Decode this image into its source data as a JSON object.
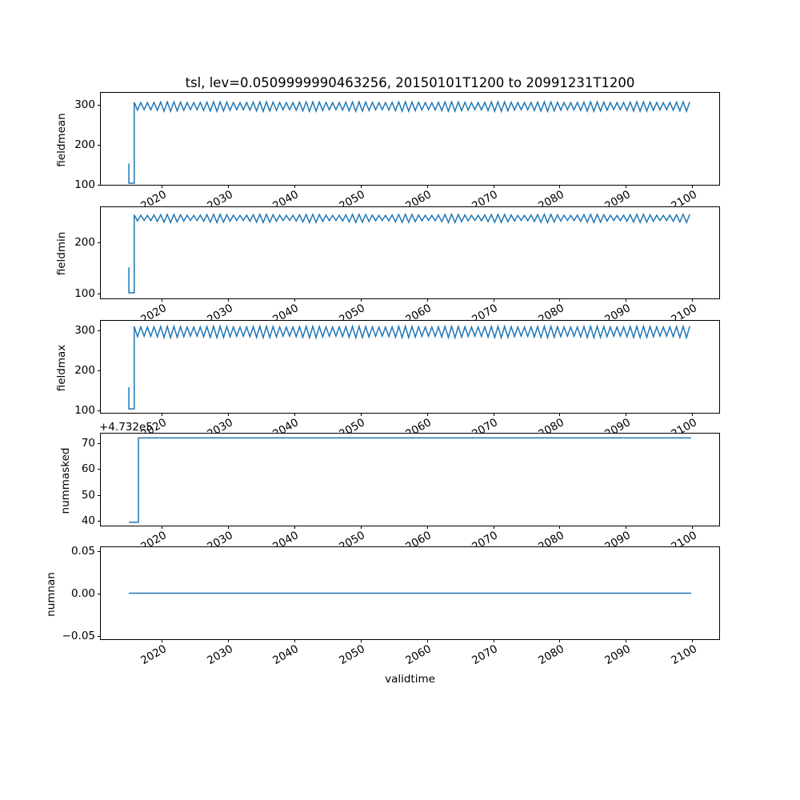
{
  "figure": {
    "title": "tsl, lev=0.0509999990463256, 20150101T1200 to 20991231T1200",
    "xlabel": "validtime",
    "line_color": "#1f77b4",
    "text_color": "#000000",
    "spine_color": "#000000",
    "background": "#ffffff"
  },
  "x_axis": {
    "label": "validtime",
    "lim": [
      2010.75,
      2104.25
    ],
    "ticks": [
      {
        "v": 2020,
        "label": "2020"
      },
      {
        "v": 2030,
        "label": "2030"
      },
      {
        "v": 2040,
        "label": "2040"
      },
      {
        "v": 2050,
        "label": "2050"
      },
      {
        "v": 2060,
        "label": "2060"
      },
      {
        "v": 2070,
        "label": "2070"
      },
      {
        "v": 2080,
        "label": "2080"
      },
      {
        "v": 2090,
        "label": "2090"
      },
      {
        "v": 2100,
        "label": "2100"
      }
    ]
  },
  "chart_data": [
    {
      "type": "line",
      "name": "fieldmean",
      "ylabel": "fieldmean",
      "ylim": [
        96,
        330
      ],
      "yticks": [
        {
          "v": 100,
          "label": "100"
        },
        {
          "v": 200,
          "label": "200"
        },
        {
          "v": 300,
          "label": "300"
        }
      ],
      "offset_text": "",
      "series": {
        "path": [
          [
            2015.0,
            150
          ],
          [
            2015.0,
            100
          ],
          [
            2015.8,
            100
          ],
          [
            2015.8,
            300
          ]
        ],
        "seasonal": {
          "x0": 2015.8,
          "x1": 2100,
          "hi": 306,
          "lo": 285,
          "period": 1
        }
      }
    },
    {
      "type": "line",
      "name": "fieldmin",
      "ylabel": "fieldmin",
      "ylim": [
        89,
        268
      ],
      "yticks": [
        {
          "v": 100,
          "label": "100"
        },
        {
          "v": 200,
          "label": "200"
        }
      ],
      "offset_text": "",
      "series": {
        "path": [
          [
            2015.0,
            150
          ],
          [
            2015.0,
            100
          ],
          [
            2015.8,
            100
          ],
          [
            2015.8,
            252
          ]
        ],
        "seasonal": {
          "x0": 2015.8,
          "x1": 2100,
          "hi": 253,
          "lo": 240,
          "period": 1
        }
      }
    },
    {
      "type": "line",
      "name": "fieldmax",
      "ylabel": "fieldmax",
      "ylim": [
        90,
        324
      ],
      "yticks": [
        {
          "v": 100,
          "label": "100"
        },
        {
          "v": 200,
          "label": "200"
        },
        {
          "v": 300,
          "label": "300"
        }
      ],
      "offset_text": "",
      "series": {
        "path": [
          [
            2015.0,
            155
          ],
          [
            2015.0,
            100
          ],
          [
            2015.8,
            100
          ],
          [
            2015.8,
            310
          ]
        ],
        "seasonal": {
          "x0": 2015.8,
          "x1": 2100,
          "hi": 309,
          "lo": 283,
          "period": 1
        }
      }
    },
    {
      "type": "line",
      "name": "nummasked",
      "ylabel": "nummasked",
      "ylim": [
        37.7,
        73.7
      ],
      "yticks": [
        {
          "v": 40,
          "label": "40"
        },
        {
          "v": 50,
          "label": "50"
        },
        {
          "v": 60,
          "label": "60"
        },
        {
          "v": 70,
          "label": "70"
        }
      ],
      "offset_text": "+4.732e5",
      "series": {
        "path": [
          [
            2015.0,
            39
          ],
          [
            2016.45,
            39
          ],
          [
            2016.45,
            72
          ],
          [
            2100,
            72
          ]
        ]
      }
    },
    {
      "type": "line",
      "name": "numnan",
      "ylabel": "numnan",
      "ylim": [
        -0.055,
        0.055
      ],
      "yticks": [
        {
          "v": -0.05,
          "label": "−0.05"
        },
        {
          "v": 0.0,
          "label": "0.00"
        },
        {
          "v": 0.05,
          "label": "0.05"
        }
      ],
      "offset_text": "",
      "series": {
        "path": [
          [
            2015.0,
            0
          ],
          [
            2100,
            0
          ]
        ]
      }
    }
  ]
}
